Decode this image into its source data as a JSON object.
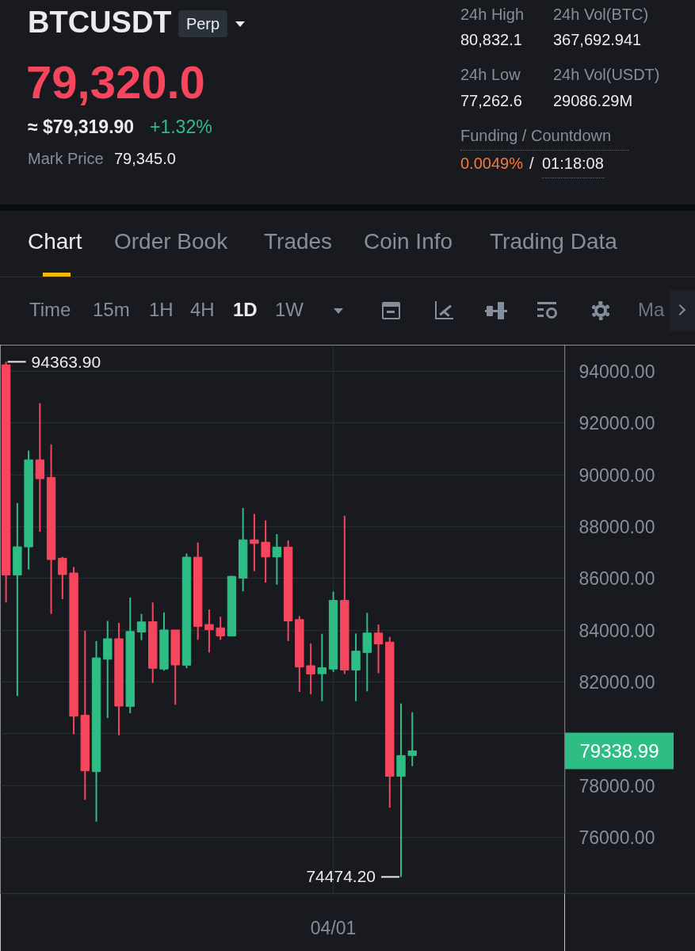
{
  "chart_data": {
    "type": "candlestick",
    "title": "BTCUSDT",
    "categories": [
      null,
      null,
      null,
      null,
      null,
      null,
      null,
      null,
      null,
      null,
      null,
      null,
      null,
      null,
      null,
      null,
      null,
      null,
      null,
      null,
      null,
      null,
      null,
      null,
      null,
      null,
      null,
      null,
      null,
      "04/01",
      null,
      null,
      null,
      null,
      null,
      null,
      null,
      null,
      null,
      null,
      null,
      null,
      null,
      null,
      null,
      null,
      null,
      null,
      null,
      null
    ],
    "ohlc": [
      [
        94250,
        94363.9,
        85070,
        86130
      ],
      [
        86130,
        88910,
        81460,
        87220
      ],
      [
        87220,
        90940,
        86350,
        90580
      ],
      [
        90580,
        92770,
        87800,
        89850
      ],
      [
        89900,
        91180,
        84630,
        86730
      ],
      [
        86780,
        86830,
        85200,
        86150
      ],
      [
        86210,
        86440,
        79980,
        80680
      ],
      [
        80720,
        83980,
        77450,
        78570
      ],
      [
        78540,
        83580,
        76610,
        82930
      ],
      [
        82880,
        84360,
        80610,
        83670
      ],
      [
        83670,
        84280,
        79940,
        81070
      ],
      [
        81060,
        85260,
        80790,
        83950
      ],
      [
        83930,
        84630,
        83620,
        84320
      ],
      [
        84330,
        85070,
        81960,
        82530
      ],
      [
        82500,
        84690,
        82440,
        84010
      ],
      [
        84010,
        84010,
        81120,
        82660
      ],
      [
        82650,
        86960,
        82530,
        86820
      ],
      [
        86820,
        87390,
        83630,
        84150
      ],
      [
        84220,
        84800,
        83140,
        84020
      ],
      [
        84090,
        84520,
        83630,
        83780
      ],
      [
        83780,
        86100,
        83760,
        86080
      ],
      [
        86010,
        88720,
        85500,
        87490
      ],
      [
        87490,
        88490,
        86280,
        87350
      ],
      [
        87400,
        88240,
        85840,
        86830
      ],
      [
        86830,
        87710,
        85760,
        87210
      ],
      [
        87210,
        87470,
        83580,
        84360
      ],
      [
        84410,
        84550,
        81620,
        82580
      ],
      [
        82630,
        83480,
        81530,
        82310
      ],
      [
        82320,
        83860,
        81260,
        82550
      ],
      [
        82500,
        85490,
        82390,
        85150
      ],
      [
        85150,
        88420,
        82310,
        82460
      ],
      [
        82460,
        83870,
        81260,
        83190
      ],
      [
        83140,
        84670,
        81640,
        83890
      ],
      [
        83890,
        84220,
        82340,
        83470
      ],
      [
        83540,
        83740,
        77140,
        78360
      ],
      [
        78360,
        81170,
        74474.2,
        79160
      ],
      [
        79160,
        80830,
        78750,
        79338.99
      ],
      null,
      null,
      null,
      null,
      null,
      null,
      null,
      null,
      null,
      null,
      null,
      null,
      null
    ],
    "colors": [
      "#f6465d",
      "#2ebd85",
      "#2ebd85",
      "#f6465d",
      "#f6465d",
      "#f6465d",
      "#f6465d",
      "#f6465d",
      "#2ebd85",
      "#2ebd85",
      "#f6465d",
      "#2ebd85",
      "#2ebd85",
      "#f6465d",
      "#2ebd85",
      "#f6465d",
      "#2ebd85",
      "#f6465d",
      "#f6465d",
      "#f6465d",
      "#2ebd85",
      "#2ebd85",
      "#f6465d",
      "#f6465d",
      "#2ebd85",
      "#f6465d",
      "#f6465d",
      "#f6465d",
      "#2ebd85",
      "#2ebd85",
      "#f6465d",
      "#2ebd85",
      "#2ebd85",
      "#f6465d",
      "#f6465d",
      "#2ebd85",
      "#2ebd85",
      null,
      null,
      null,
      null,
      null,
      null,
      null,
      null,
      null,
      null,
      null,
      null,
      null
    ],
    "ylim": [
      73830,
      95010
    ],
    "yticks": [
      {
        "value": 76000,
        "label": "76000.00"
      },
      {
        "value": 78000,
        "label": "78000.00"
      },
      {
        "value": 80000,
        "label": null
      },
      {
        "value": 82000,
        "label": "82000.00"
      },
      {
        "value": 84000,
        "label": "84000.00"
      },
      {
        "value": 86000,
        "label": "86000.00"
      },
      {
        "value": 88000,
        "label": "88000.00"
      },
      {
        "value": 90000,
        "label": "90000.00"
      },
      {
        "value": 92000,
        "label": "92000.00"
      },
      {
        "value": 94000,
        "label": "94000.00"
      }
    ],
    "grid": true,
    "annotations": [
      "Perp",
      "79,320.0",
      "≈ $79,319.90",
      "+1.32%",
      "Mark Price",
      "79,345.0",
      "24h High",
      "80,832.1",
      "24h Vol(BTC)",
      "367,692.941",
      "24h Low",
      "77,262.6",
      "24h Vol(USDT)",
      "29086.29M",
      "Funding / Countdown",
      "0.0049%",
      "/",
      "01:18:08",
      "Chart",
      "Order Book",
      "Trades",
      "Coin Info",
      "Trading Data",
      "Time",
      "15m",
      "1H",
      "4H",
      "1D",
      "1W",
      "Ma",
      "94363.90",
      "74474.20",
      "79338.99"
    ]
  }
}
